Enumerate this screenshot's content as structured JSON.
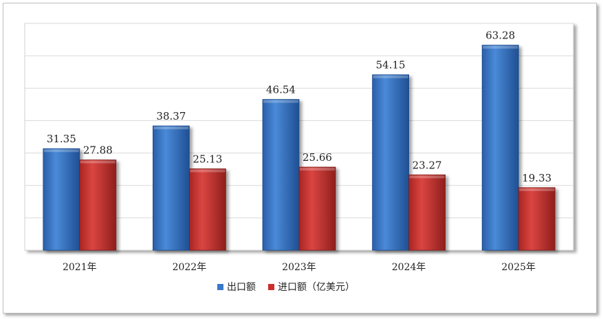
{
  "chart_data": {
    "type": "bar",
    "categories": [
      "2021年",
      "2022年",
      "2023年",
      "2024年",
      "2025年"
    ],
    "series": [
      {
        "name": "出口额",
        "values": [
          31.35,
          38.37,
          46.54,
          54.15,
          63.28
        ],
        "color": "#3a78c9"
      },
      {
        "name": "进口额（亿美元）",
        "values": [
          27.88,
          25.13,
          25.66,
          23.27,
          19.33
        ],
        "color": "#c9302c"
      }
    ],
    "ylim": [
      0,
      70
    ],
    "grid": true,
    "legend": "bottom",
    "data_labels": true
  }
}
